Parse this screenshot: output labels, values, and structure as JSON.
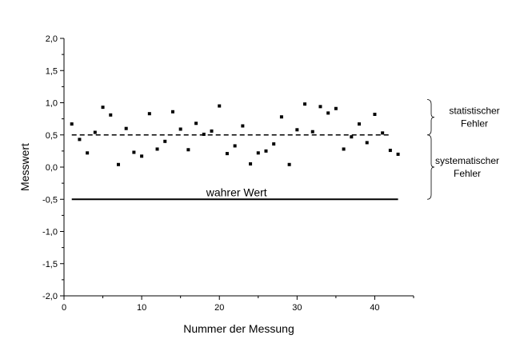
{
  "chart_data": {
    "type": "scatter",
    "xlabel": "Nummer der Messung",
    "ylabel": "Messwert",
    "xlim": [
      0,
      45
    ],
    "ylim": [
      -2.0,
      2.0
    ],
    "x_ticks": [
      0,
      10,
      20,
      30,
      40
    ],
    "x_tick_labels": [
      "0",
      "10",
      "20",
      "30",
      "40"
    ],
    "y_ticks": [
      -2.0,
      -1.5,
      -1.0,
      -0.5,
      0.0,
      0.5,
      1.0,
      1.5,
      2.0
    ],
    "y_tick_labels": [
      "-2,0",
      "-1,5",
      "-1,0",
      "-0,5",
      "0,0",
      "0,5",
      "1,0",
      "1,5",
      "2,0"
    ],
    "grid": false,
    "points": {
      "x": [
        1,
        2,
        3,
        4,
        5,
        6,
        7,
        8,
        9,
        10,
        11,
        12,
        13,
        14,
        15,
        16,
        17,
        18,
        19,
        20,
        21,
        22,
        23,
        24,
        25,
        26,
        27,
        28,
        29,
        30,
        31,
        32,
        33,
        34,
        35,
        36,
        37,
        38,
        39,
        40,
        41,
        42,
        43
      ],
      "y": [
        0.67,
        0.43,
        0.22,
        0.54,
        0.93,
        0.81,
        0.04,
        0.6,
        0.23,
        0.17,
        0.83,
        0.28,
        0.4,
        0.86,
        0.59,
        0.27,
        0.68,
        0.51,
        0.56,
        0.95,
        0.21,
        0.33,
        0.64,
        0.05,
        0.22,
        0.25,
        0.36,
        0.78,
        0.04,
        0.58,
        0.98,
        0.55,
        0.94,
        0.84,
        0.91,
        0.28,
        0.47,
        0.67,
        0.38,
        0.82,
        0.53,
        0.26,
        0.2
      ]
    },
    "lines": [
      {
        "style": "dashed",
        "y": 0.5,
        "x_start": 1,
        "x_end": 42
      },
      {
        "style": "solid",
        "y": -0.5,
        "x_start": 1,
        "x_end": 43,
        "label": "wahrer Wert"
      }
    ],
    "annotations": [
      {
        "text_lines": [
          "statistischer",
          "Fehler"
        ],
        "y_from": 0.5,
        "y_to": 1.05
      },
      {
        "text_lines": [
          "systematischer",
          "Fehler"
        ],
        "y_from": -0.5,
        "y_to": 0.5
      }
    ]
  }
}
